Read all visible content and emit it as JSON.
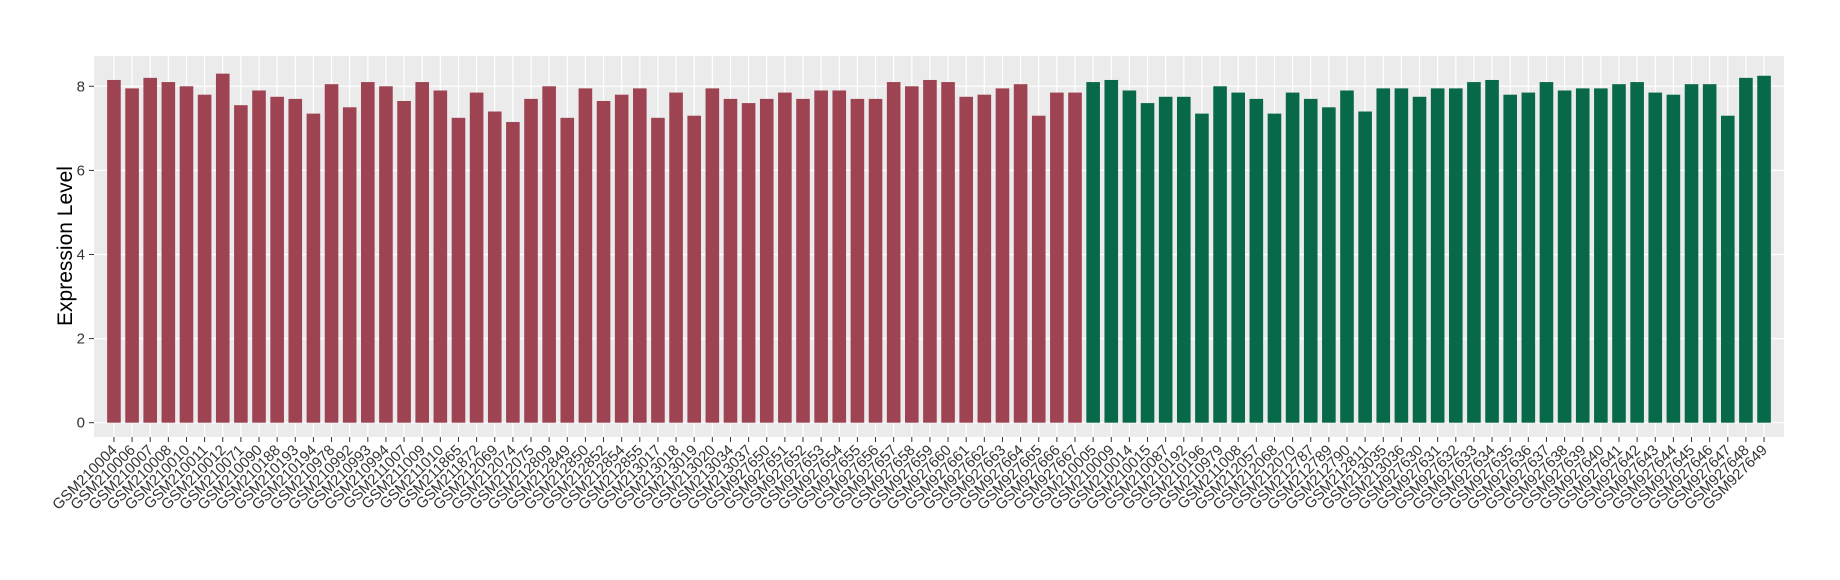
{
  "chart_data": {
    "type": "bar",
    "y_label": "Expression Level",
    "categories": [
      "GSM210004",
      "GSM210006",
      "GSM210007",
      "GSM210008",
      "GSM210010",
      "GSM210011",
      "GSM210012",
      "GSM210071",
      "GSM210090",
      "GSM210188",
      "GSM210193",
      "GSM210194",
      "GSM210978",
      "GSM210992",
      "GSM210993",
      "GSM210994",
      "GSM211007",
      "GSM211009",
      "GSM211010",
      "GSM211865",
      "GSM211872",
      "GSM212069",
      "GSM212074",
      "GSM212075",
      "GSM212809",
      "GSM212849",
      "GSM212850",
      "GSM212852",
      "GSM212854",
      "GSM212855",
      "GSM213017",
      "GSM213018",
      "GSM213019",
      "GSM213020",
      "GSM213034",
      "GSM213037",
      "GSM927650",
      "GSM927651",
      "GSM927652",
      "GSM927653",
      "GSM927654",
      "GSM927655",
      "GSM927656",
      "GSM927657",
      "GSM927658",
      "GSM927659",
      "GSM927660",
      "GSM927661",
      "GSM927662",
      "GSM927663",
      "GSM927664",
      "GSM927665",
      "GSM927666",
      "GSM927667",
      "GSM210005",
      "GSM210009",
      "GSM210014",
      "GSM210015",
      "GSM210087",
      "GSM210192",
      "GSM210196",
      "GSM210979",
      "GSM211008",
      "GSM212057",
      "GSM212068",
      "GSM212070",
      "GSM212787",
      "GSM212789",
      "GSM212790",
      "GSM212811",
      "GSM213035",
      "GSM213036",
      "GSM927630",
      "GSM927631",
      "GSM927632",
      "GSM927633",
      "GSM927634",
      "GSM927635",
      "GSM927636",
      "GSM927637",
      "GSM927638",
      "GSM927639",
      "GSM927640",
      "GSM927641",
      "GSM927642",
      "GSM927643",
      "GSM927644",
      "GSM927645",
      "GSM927646",
      "GSM927647",
      "GSM927648",
      "GSM927649"
    ],
    "values": [
      8.15,
      7.95,
      8.2,
      8.1,
      8.0,
      7.8,
      8.3,
      7.55,
      7.9,
      7.75,
      7.7,
      7.35,
      8.05,
      7.5,
      8.1,
      8.0,
      7.65,
      8.1,
      7.9,
      7.25,
      7.85,
      7.4,
      7.15,
      7.7,
      8.0,
      7.25,
      7.95,
      7.65,
      7.8,
      7.95,
      7.25,
      7.85,
      7.3,
      7.95,
      7.7,
      7.6,
      7.7,
      7.85,
      7.7,
      7.9,
      7.9,
      7.7,
      7.7,
      8.1,
      8.0,
      8.15,
      8.1,
      7.75,
      7.8,
      7.95,
      8.05,
      7.3,
      7.85,
      7.85,
      8.1,
      8.15,
      7.9,
      7.6,
      7.75,
      7.75,
      7.35,
      8.0,
      7.85,
      7.7,
      7.35,
      7.85,
      7.7,
      7.5,
      7.9,
      7.4,
      7.95,
      7.95,
      7.75,
      7.95,
      7.95,
      8.1,
      8.15,
      7.8,
      7.85,
      8.1,
      7.9,
      7.95,
      7.95,
      8.05,
      8.1,
      7.85,
      7.8,
      8.05,
      8.05,
      7.3,
      8.2,
      8.25
    ],
    "colors": [
      "#9e4352",
      "#9e4352",
      "#9e4352",
      "#9e4352",
      "#9e4352",
      "#9e4352",
      "#9e4352",
      "#9e4352",
      "#9e4352",
      "#9e4352",
      "#9e4352",
      "#9e4352",
      "#9e4352",
      "#9e4352",
      "#9e4352",
      "#9e4352",
      "#9e4352",
      "#9e4352",
      "#9e4352",
      "#9e4352",
      "#9e4352",
      "#9e4352",
      "#9e4352",
      "#9e4352",
      "#9e4352",
      "#9e4352",
      "#9e4352",
      "#9e4352",
      "#9e4352",
      "#9e4352",
      "#9e4352",
      "#9e4352",
      "#9e4352",
      "#9e4352",
      "#9e4352",
      "#9e4352",
      "#9e4352",
      "#9e4352",
      "#9e4352",
      "#9e4352",
      "#9e4352",
      "#9e4352",
      "#9e4352",
      "#9e4352",
      "#9e4352",
      "#9e4352",
      "#9e4352",
      "#9e4352",
      "#9e4352",
      "#9e4352",
      "#9e4352",
      "#9e4352",
      "#9e4352",
      "#9e4352",
      "#08694a",
      "#08694a",
      "#08694a",
      "#08694a",
      "#08694a",
      "#08694a",
      "#08694a",
      "#08694a",
      "#08694a",
      "#08694a",
      "#08694a",
      "#08694a",
      "#08694a",
      "#08694a",
      "#08694a",
      "#08694a",
      "#08694a",
      "#08694a",
      "#08694a",
      "#08694a",
      "#08694a",
      "#08694a",
      "#08694a",
      "#08694a",
      "#08694a",
      "#08694a",
      "#08694a",
      "#08694a",
      "#08694a",
      "#08694a",
      "#08694a",
      "#08694a",
      "#08694a",
      "#08694a",
      "#08694a",
      "#08694a",
      "#08694a",
      "#08694a"
    ],
    "ylim": [
      -0.34,
      8.72
    ],
    "yticks": [
      0,
      2,
      4,
      6,
      8
    ],
    "grid": true
  }
}
